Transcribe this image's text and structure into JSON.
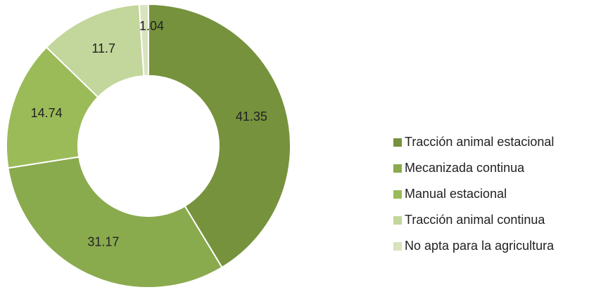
{
  "chart_data": {
    "type": "donut",
    "categories": [
      "Tracción animal estacional",
      "Mecanizada continua",
      "Manual estacional",
      "Tracción animal continua",
      "No apta para la agricultura"
    ],
    "values": [
      41.35,
      31.17,
      14.74,
      11.7,
      1.04
    ],
    "colors": [
      "#76923c",
      "#8aaa4e",
      "#9bbb59",
      "#c3d69b",
      "#d7e4bd"
    ],
    "legend": "right"
  }
}
